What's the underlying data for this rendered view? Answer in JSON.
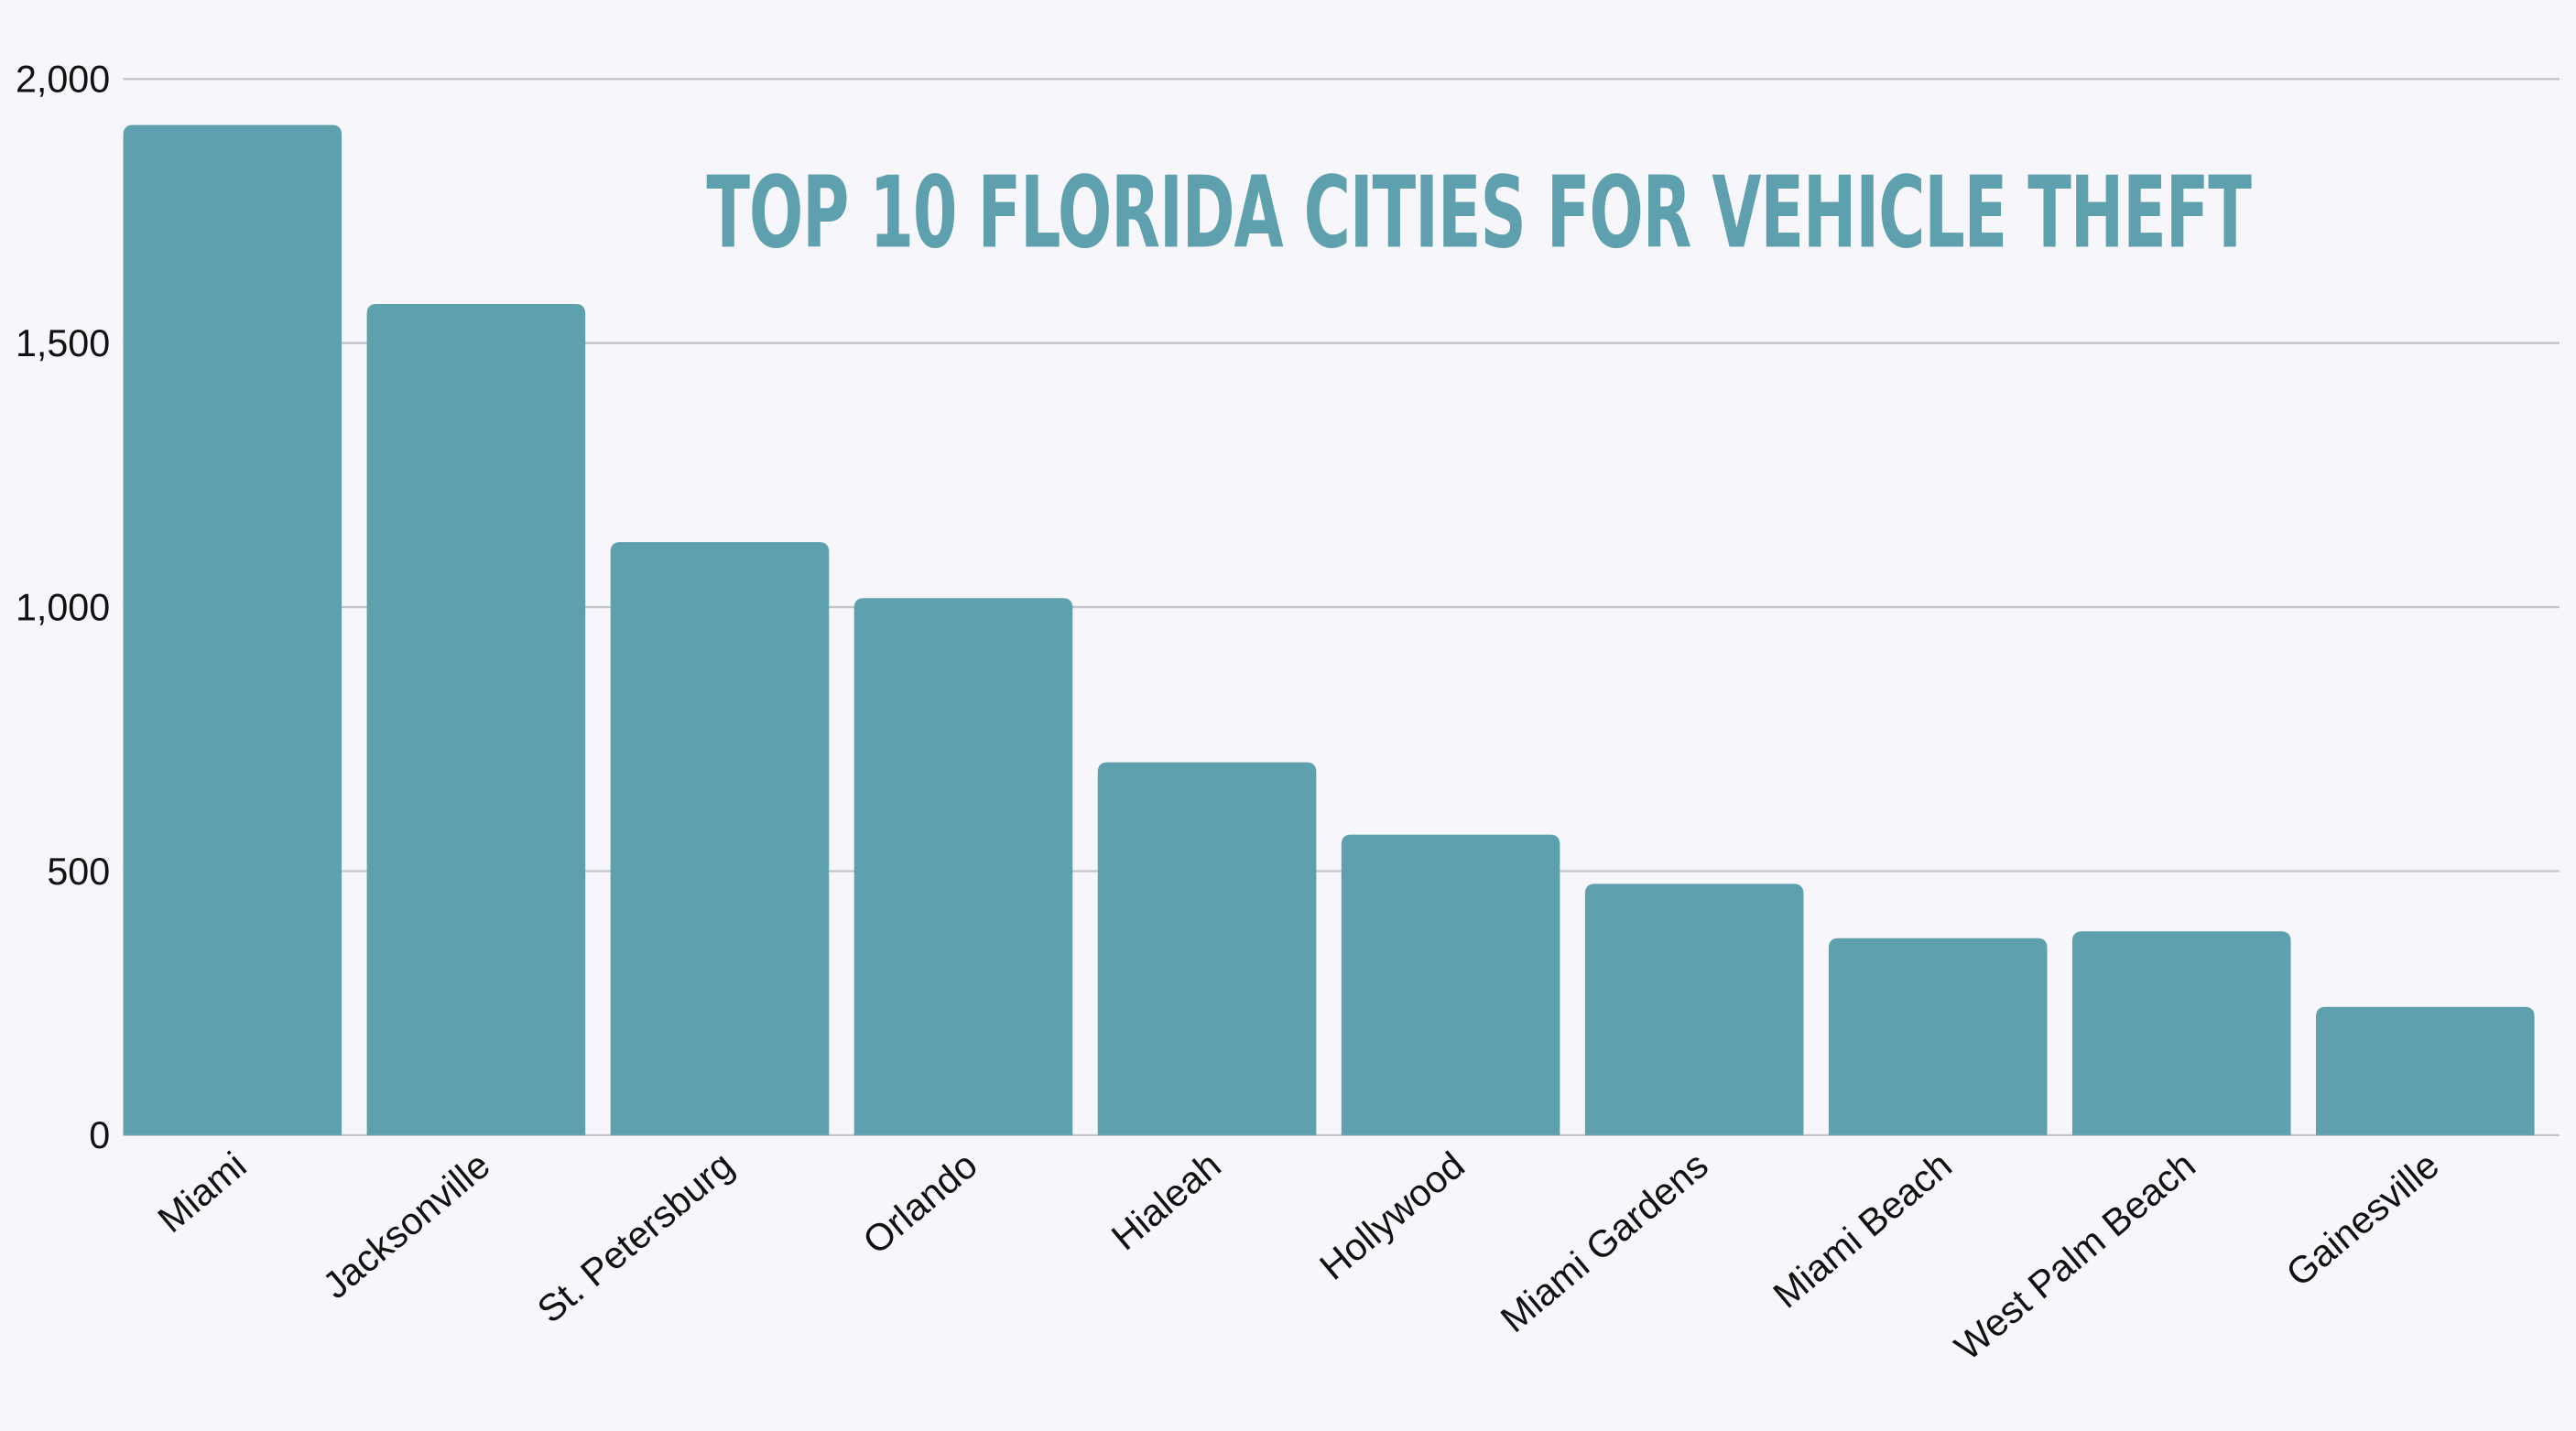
{
  "chart_data": {
    "type": "bar",
    "title": "TOP 10 FLORIDA CITIES FOR VEHICLE THEFT",
    "categories": [
      "Miami",
      "Jacksonville",
      "St. Petersburg",
      "Orlando",
      "Hialeah",
      "Hollywood",
      "Miami Gardens",
      "Miami Beach",
      "West Palm Beach",
      "Gainesville"
    ],
    "values": [
      1913,
      1574,
      1123,
      1017,
      706,
      569,
      476,
      373,
      386,
      243
    ],
    "xlabel": "",
    "ylabel": "",
    "ylim": [
      0,
      2000
    ],
    "yticks": [
      0,
      500,
      1000,
      1500,
      2000
    ],
    "ytick_labels": [
      "0",
      "500",
      "1,000",
      "1,500",
      "2,000"
    ],
    "grid": true,
    "colors": {
      "bar": "#5ea0ad",
      "title": "#5ea0ad",
      "grid": "#c4c4cc",
      "background": "#f7f7fb"
    }
  }
}
